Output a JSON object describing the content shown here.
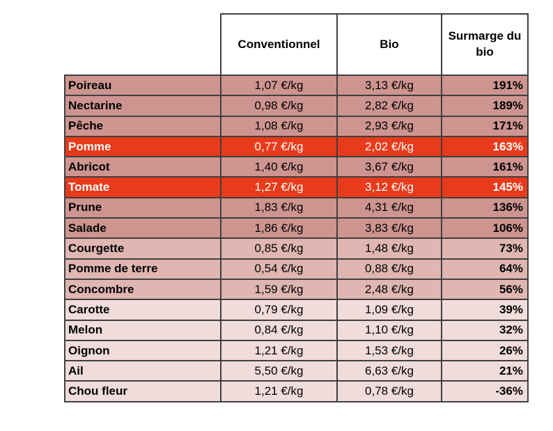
{
  "table": {
    "header": {
      "product": "",
      "conventional": "Conventionnel",
      "bio": "Bio",
      "markup": "Surmarge du bio"
    },
    "rows": [
      {
        "product": "Poireau",
        "conventional": "1,07 €/kg",
        "bio": "3,13 €/kg",
        "markup": "191%",
        "tier": "rose"
      },
      {
        "product": "Nectarine",
        "conventional": "0,98 €/kg",
        "bio": "2,82 €/kg",
        "markup": "189%",
        "tier": "rose"
      },
      {
        "product": "Pêche",
        "conventional": "1,08 €/kg",
        "bio": "2,93 €/kg",
        "markup": "171%",
        "tier": "rose"
      },
      {
        "product": "Pomme",
        "conventional": "0,77 €/kg",
        "bio": "2,02 €/kg",
        "markup": "163%",
        "tier": "red"
      },
      {
        "product": "Abricot",
        "conventional": "1,40 €/kg",
        "bio": "3,67 €/kg",
        "markup": "161%",
        "tier": "rose"
      },
      {
        "product": "Tomate",
        "conventional": "1,27 €/kg",
        "bio": "3,12 €/kg",
        "markup": "145%",
        "tier": "red"
      },
      {
        "product": "Prune",
        "conventional": "1,83 €/kg",
        "bio": "4,31 €/kg",
        "markup": "136%",
        "tier": "rose"
      },
      {
        "product": "Salade",
        "conventional": "1,86 €/kg",
        "bio": "3,83 €/kg",
        "markup": "106%",
        "tier": "rose"
      },
      {
        "product": "Courgette",
        "conventional": "0,85 €/kg",
        "bio": "1,48 €/kg",
        "markup": "73%",
        "tier": "medium"
      },
      {
        "product": "Pomme de terre",
        "conventional": "0,54 €/kg",
        "bio": "0,88 €/kg",
        "markup": "64%",
        "tier": "medium"
      },
      {
        "product": "Concombre",
        "conventional": "1,59 €/kg",
        "bio": "2,48 €/kg",
        "markup": "56%",
        "tier": "medium"
      },
      {
        "product": "Carotte",
        "conventional": "0,79 €/kg",
        "bio": "1,09 €/kg",
        "markup": "39%",
        "tier": "light"
      },
      {
        "product": "Melon",
        "conventional": "0,84 €/kg",
        "bio": "1,10 €/kg",
        "markup": "32%",
        "tier": "light"
      },
      {
        "product": "Oignon",
        "conventional": "1,21 €/kg",
        "bio": "1,53 €/kg",
        "markup": "26%",
        "tier": "light"
      },
      {
        "product": "Ail",
        "conventional": "5,50 €/kg",
        "bio": "6,63 €/kg",
        "markup": "21%",
        "tier": "light"
      },
      {
        "product": "Chou fleur",
        "conventional": "1,21 €/kg",
        "bio": "0,78 €/kg",
        "markup": "-36%",
        "tier": "light"
      }
    ]
  },
  "colors": {
    "tier_rose": "#ce9590",
    "tier_red": "#e83b1b",
    "tier_medium": "#dfb6b2",
    "tier_light": "#f0dcda",
    "border": "#3f3f3f",
    "header_bg": "#ffffff",
    "text": "#000000",
    "highlight_text": "#ffffff"
  },
  "chart_data": {
    "type": "table",
    "title": "",
    "columns": [
      "",
      "Conventionnel",
      "Bio",
      "Surmarge du bio"
    ],
    "products": [
      "Poireau",
      "Nectarine",
      "Pêche",
      "Pomme",
      "Abricot",
      "Tomate",
      "Prune",
      "Salade",
      "Courgette",
      "Pomme de terre",
      "Concombre",
      "Carotte",
      "Melon",
      "Oignon",
      "Ail",
      "Chou fleur"
    ],
    "conventional_eur_per_kg": [
      1.07,
      0.98,
      1.08,
      0.77,
      1.4,
      1.27,
      1.83,
      1.86,
      0.85,
      0.54,
      1.59,
      0.79,
      0.84,
      1.21,
      5.5,
      1.21
    ],
    "bio_eur_per_kg": [
      3.13,
      2.82,
      2.93,
      2.02,
      3.67,
      3.12,
      4.31,
      3.83,
      1.48,
      0.88,
      2.48,
      1.09,
      1.1,
      1.53,
      6.63,
      0.78
    ],
    "surmarge_du_bio_pct": [
      191,
      189,
      171,
      163,
      161,
      145,
      136,
      106,
      73,
      64,
      56,
      39,
      32,
      26,
      21,
      -36
    ],
    "highlighted_rows": [
      "Pomme",
      "Tomate"
    ],
    "unit": "€/kg"
  }
}
